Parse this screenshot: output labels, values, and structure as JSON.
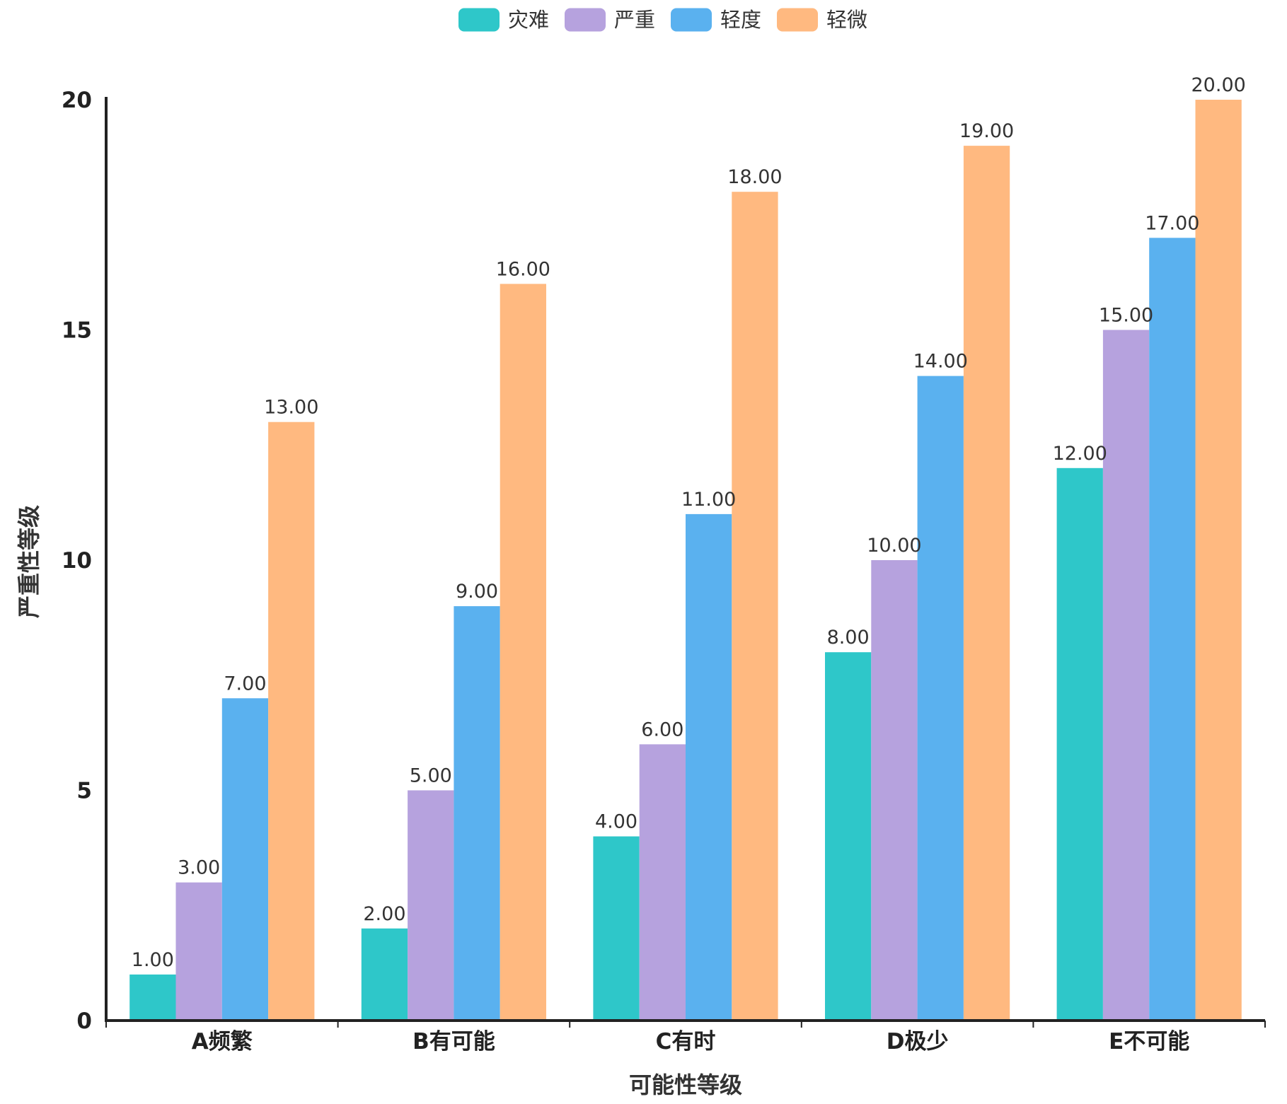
{
  "chart_data": {
    "type": "bar",
    "title": "",
    "xlabel": "可能性等级",
    "ylabel": "严重性等级",
    "ylim": [
      0,
      20
    ],
    "yticks": [
      0,
      5,
      10,
      15,
      20
    ],
    "grid": false,
    "legend_position": "top-center",
    "categories": [
      "A频繁",
      "B有可能",
      "C有时",
      "D极少",
      "E不可能"
    ],
    "series": [
      {
        "name": "灾难",
        "color": "#2ec7c9",
        "values": [
          1,
          2,
          4,
          8,
          12
        ]
      },
      {
        "name": "严重",
        "color": "#b6a2de",
        "values": [
          3,
          5,
          6,
          10,
          15
        ]
      },
      {
        "name": "轻度",
        "color": "#5ab1ef",
        "values": [
          7,
          9,
          11,
          14,
          17
        ]
      },
      {
        "name": "轻微",
        "color": "#ffb980",
        "values": [
          13,
          16,
          18,
          19,
          20
        ]
      }
    ],
    "label_format": "0.00"
  }
}
